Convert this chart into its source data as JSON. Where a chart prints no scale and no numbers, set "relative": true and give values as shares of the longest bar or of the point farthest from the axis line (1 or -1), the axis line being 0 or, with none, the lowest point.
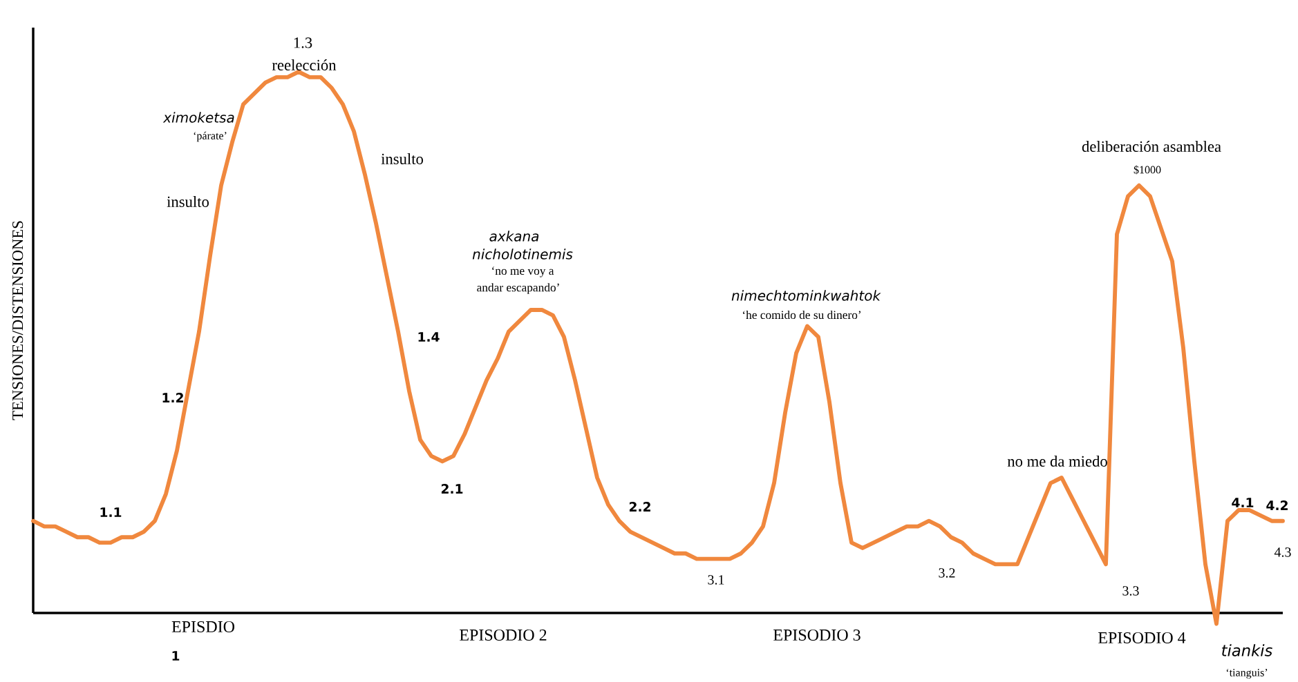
{
  "chart_data": {
    "type": "line",
    "relative": true,
    "color": "#f0883e",
    "ylabel": "TENSIONES/DISTENSIONES",
    "categories": [
      null,
      null,
      null,
      null,
      null,
      null,
      null,
      null,
      null,
      null,
      null,
      null,
      null,
      null,
      null,
      null,
      null,
      null,
      null,
      null,
      null,
      null,
      null,
      null,
      null,
      null,
      null,
      null,
      null,
      null,
      null,
      null,
      null,
      null,
      null,
      null,
      null,
      null,
      null,
      null,
      null,
      null,
      null,
      null,
      null,
      null,
      null,
      null,
      null,
      null,
      null,
      null,
      null,
      null,
      null,
      null,
      null,
      null,
      null,
      null,
      null,
      null,
      null,
      null,
      null,
      null,
      null,
      null,
      null,
      null,
      null,
      null,
      null,
      null,
      null,
      null,
      null,
      null,
      null,
      null,
      null,
      null,
      null,
      null,
      null,
      null,
      null,
      null,
      null,
      null,
      null,
      null,
      null,
      null,
      null,
      null,
      null,
      null,
      null,
      null,
      null,
      null,
      null,
      null,
      null,
      null,
      null,
      null,
      null,
      null,
      null,
      null,
      null,
      null
    ],
    "values": [
      0.17,
      0.16,
      0.16,
      0.15,
      0.14,
      0.14,
      0.13,
      0.13,
      0.14,
      0.14,
      0.15,
      0.17,
      0.22,
      0.3,
      0.41,
      0.52,
      0.66,
      0.79,
      0.87,
      0.94,
      0.96,
      0.98,
      0.99,
      0.99,
      1,
      0.99,
      0.99,
      0.97,
      0.94,
      0.89,
      0.81,
      0.72,
      0.62,
      0.52,
      0.41,
      0.32,
      0.29,
      0.28,
      0.29,
      0.33,
      0.38,
      0.43,
      0.47,
      0.52,
      0.54,
      0.56,
      0.56,
      0.55,
      0.51,
      0.43,
      0.34,
      0.25,
      0.2,
      0.17,
      0.15,
      0.14,
      0.13,
      0.12,
      0.11,
      0.11,
      0.1,
      0.1,
      0.1,
      0.1,
      0.11,
      0.13,
      0.16,
      0.24,
      0.37,
      0.48,
      0.53,
      0.51,
      0.39,
      0.24,
      0.13,
      0.12,
      0.13,
      0.14,
      0.15,
      0.16,
      0.16,
      0.17,
      0.16,
      0.14,
      0.13,
      0.11,
      0.1,
      0.09,
      0.09,
      0.09,
      0.14,
      0.19,
      0.24,
      0.25,
      0.21,
      0.17,
      0.13,
      0.09,
      0.7,
      0.77,
      0.79,
      0.77,
      0.71,
      0.65,
      0.49,
      0.28,
      0.09,
      -0.02,
      0.17,
      0.19,
      0.19,
      0.18,
      0.17,
      0.17
    ],
    "annotations": [
      "1.1",
      "1.2",
      "1.3",
      "reelección",
      "ximoketsa",
      "‘párate’",
      "insulto",
      "insulto",
      "axkana",
      "nicholotinemis",
      "‘no me voy a",
      "andar escapando’",
      "1.4",
      "2.1",
      "2.2",
      "nimechtominkwahtok",
      "‘he comido de su dinero’",
      "3.1",
      "3.2",
      "no me da miedo",
      "3.3",
      "deliberación asamblea",
      "$1000",
      "4.1",
      "4.2",
      "4.3",
      "EPISDIO",
      "1",
      "EPISODIO 2",
      "EPISODIO 3",
      "EPISODIO 4",
      "tiankis",
      "‘tianguis’"
    ]
  }
}
